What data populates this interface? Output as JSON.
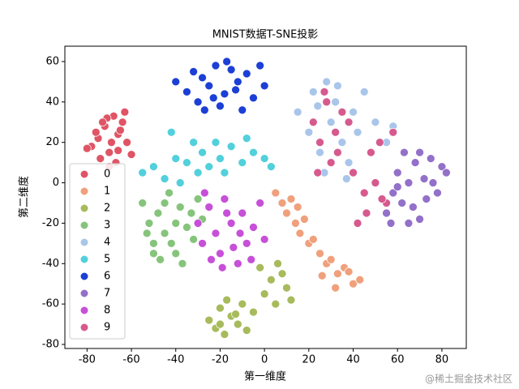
{
  "chart_data": {
    "type": "scatter",
    "title": "MNIST数据T-SNE投影",
    "x_label": "第一维度",
    "y_label": "第二维度",
    "xlim": [
      -90,
      91
    ],
    "ylim": [
      -82,
      67.6
    ],
    "xticks": [
      -80,
      -60,
      -40,
      -20,
      0,
      20,
      40,
      60,
      80
    ],
    "yticks": [
      -80,
      -60,
      -40,
      -20,
      0,
      20,
      40,
      60
    ],
    "legend": "lower left",
    "grid": false,
    "series": [
      {
        "name": "0",
        "color": "#df5566",
        "x": [
          -78,
          -75,
          -72,
          -70,
          -68,
          -66,
          -64,
          -62,
          -60,
          -74,
          -71,
          -67,
          -65,
          -80,
          -76,
          -69,
          -63,
          -70,
          -73,
          -66
        ],
        "y": [
          18,
          22,
          28,
          15,
          33,
          24,
          30,
          20,
          14,
          12,
          32,
          10,
          26,
          17,
          25,
          20,
          35,
          8,
          30,
          16
        ]
      },
      {
        "name": "1",
        "color": "#f0a07c",
        "x": [
          5,
          8,
          10,
          12,
          14,
          16,
          18,
          20,
          22,
          25,
          28,
          30,
          33,
          36,
          40,
          43,
          26,
          32,
          38,
          15
        ],
        "y": [
          -5,
          -10,
          -15,
          -8,
          -20,
          -25,
          -18,
          -30,
          -28,
          -35,
          -40,
          -38,
          -45,
          -42,
          -50,
          -48,
          -46,
          -52,
          -44,
          -12
        ]
      },
      {
        "name": "2",
        "color": "#a7bb5c",
        "x": [
          -25,
          -22,
          -20,
          -18,
          -15,
          -12,
          -10,
          -8,
          -5,
          0,
          3,
          5,
          8,
          10,
          -17,
          -13,
          -2,
          12,
          -20,
          6
        ],
        "y": [
          -68,
          -72,
          -62,
          -75,
          -66,
          -70,
          -60,
          -73,
          -64,
          -55,
          -48,
          -60,
          -45,
          -52,
          -58,
          -65,
          -42,
          -58,
          -70,
          -40
        ]
      },
      {
        "name": "3",
        "color": "#86c47c",
        "x": [
          -55,
          -52,
          -50,
          -48,
          -45,
          -43,
          -40,
          -38,
          -35,
          -32,
          -30,
          -28,
          -47,
          -42,
          -37,
          -53,
          -33,
          -45,
          -40,
          -50
        ],
        "y": [
          -10,
          -20,
          -30,
          -15,
          -25,
          -5,
          -35,
          -12,
          -22,
          -28,
          -8,
          -18,
          -38,
          -30,
          -40,
          -25,
          -15,
          -10,
          -20,
          -35
        ]
      },
      {
        "name": "4",
        "color": "#a9c6ea",
        "x": [
          15,
          20,
          22,
          25,
          28,
          30,
          32,
          35,
          38,
          40,
          42,
          45,
          48,
          50,
          55,
          58,
          27,
          33,
          37,
          24
        ],
        "y": [
          35,
          25,
          45,
          15,
          50,
          30,
          40,
          20,
          10,
          35,
          25,
          45,
          15,
          30,
          20,
          28,
          5,
          48,
          2,
          38
        ]
      },
      {
        "name": "5",
        "color": "#52d0dc",
        "x": [
          -55,
          -50,
          -45,
          -40,
          -38,
          -35,
          -30,
          -28,
          -25,
          -22,
          -20,
          -15,
          -10,
          -8,
          -5,
          0,
          3,
          -42,
          -18,
          -32
        ],
        "y": [
          5,
          8,
          2,
          12,
          0,
          10,
          5,
          15,
          8,
          20,
          12,
          18,
          10,
          22,
          15,
          12,
          8,
          25,
          5,
          20
        ]
      },
      {
        "name": "6",
        "color": "#1c3fd6",
        "x": [
          -40,
          -35,
          -32,
          -30,
          -28,
          -25,
          -22,
          -20,
          -18,
          -15,
          -12,
          -10,
          -8,
          -5,
          -2,
          0,
          -27,
          -17,
          -13,
          -23
        ],
        "y": [
          50,
          45,
          55,
          40,
          52,
          48,
          58,
          38,
          44,
          56,
          50,
          36,
          54,
          42,
          58,
          48,
          36,
          60,
          46,
          42
        ]
      },
      {
        "name": "7",
        "color": "#9370c9",
        "x": [
          55,
          58,
          60,
          62,
          65,
          68,
          70,
          72,
          75,
          78,
          80,
          82,
          63,
          67,
          73,
          57,
          76,
          70,
          60,
          65
        ],
        "y": [
          -15,
          -5,
          5,
          -10,
          0,
          10,
          -18,
          2,
          12,
          -5,
          8,
          5,
          15,
          -12,
          -8,
          -20,
          0,
          15,
          -2,
          -20
        ]
      },
      {
        "name": "8",
        "color": "#c750d8",
        "x": [
          -30,
          -28,
          -25,
          -22,
          -20,
          -18,
          -15,
          -12,
          -10,
          -8,
          -5,
          -2,
          0,
          -24,
          -14,
          -6,
          -27,
          -17,
          -11,
          -19
        ],
        "y": [
          -20,
          -30,
          -12,
          -25,
          -35,
          -8,
          -20,
          -40,
          -15,
          -30,
          -22,
          -10,
          -28,
          -38,
          -32,
          -38,
          -5,
          -15,
          -25,
          -42
        ]
      },
      {
        "name": "9",
        "color": "#d65a8e",
        "x": [
          22,
          25,
          28,
          30,
          32,
          35,
          40,
          45,
          48,
          50,
          52,
          55,
          58,
          27,
          38,
          46,
          53,
          33,
          24,
          42
        ],
        "y": [
          30,
          20,
          40,
          10,
          25,
          35,
          5,
          -5,
          15,
          0,
          20,
          -10,
          25,
          45,
          30,
          -15,
          -8,
          15,
          5,
          -20
        ]
      }
    ]
  },
  "watermark": "@稀土掘金技术社区"
}
